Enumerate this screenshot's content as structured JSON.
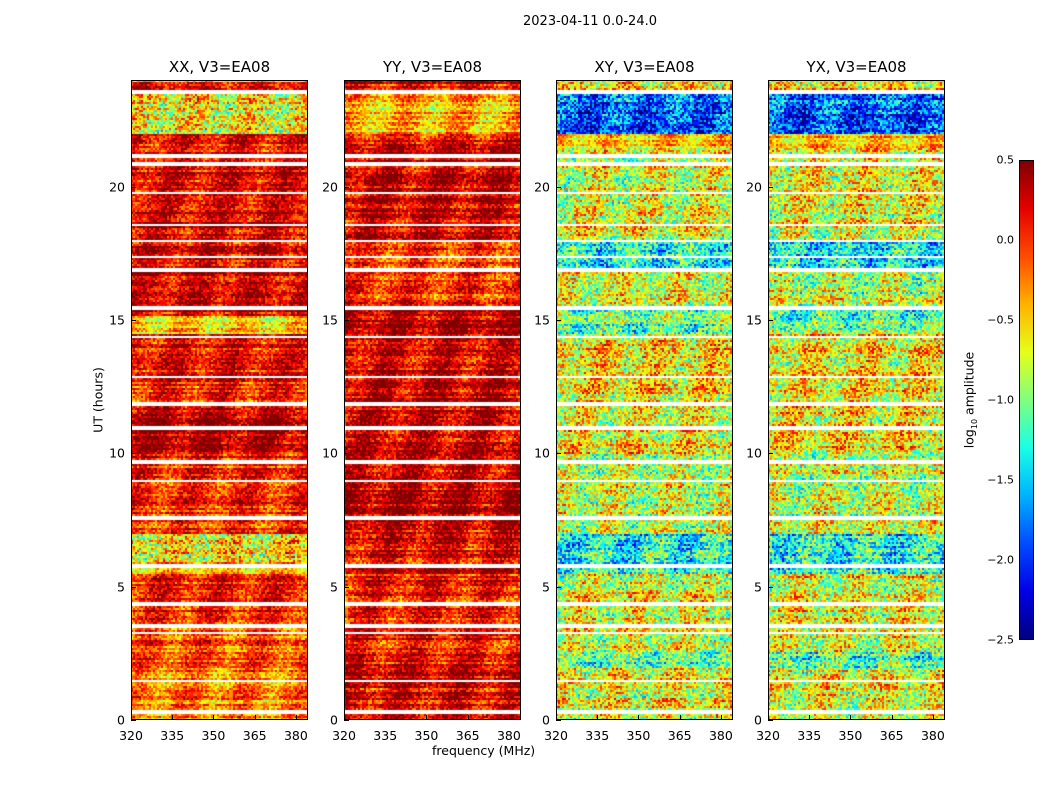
{
  "chart_data": {
    "type": "heatmap",
    "title": "2023-04-11 0.0-24.0",
    "xlabel": "frequency (MHz)",
    "ylabel": "UT (hours)",
    "xlim": [
      320,
      384.4
    ],
    "ylim": [
      0,
      24
    ],
    "xticks": [
      "320",
      "335",
      "350",
      "365",
      "380"
    ],
    "xtick_values": [
      320,
      335,
      350,
      365,
      380
    ],
    "yticks": [
      "0",
      "5",
      "10",
      "15",
      "20"
    ],
    "ytick_values": [
      0,
      5,
      10,
      15,
      20
    ],
    "colorbar": {
      "label": "log10 amplitude",
      "label_main": "log",
      "label_sub": "10",
      "label_rest": " amplitude",
      "colormap": "jet",
      "range": [
        -2.5,
        0.5
      ],
      "ticks": [
        "0.5",
        "0.0",
        "−0.5",
        "−1.0",
        "−1.5",
        "−2.0",
        "−2.5"
      ],
      "tick_values": [
        0.5,
        0.0,
        -0.5,
        -1.0,
        -1.5,
        -2.0,
        -2.5
      ]
    },
    "flagged_times_hours": [
      0.35,
      1.5,
      3.3,
      3.55,
      4.4,
      5.8,
      7.6,
      9.0,
      9.7,
      11.0,
      11.9,
      12.9,
      14.4,
      15.5,
      16.9,
      17.4,
      18.0,
      18.6,
      19.8,
      20.9,
      21.2,
      23.6
    ],
    "panels": [
      {
        "title": "XX, V3=EA08",
        "bands": [
          [
            0,
            0.5,
            -0.3
          ],
          [
            0.5,
            2,
            -0.25
          ],
          [
            2,
            3.5,
            -0.1
          ],
          [
            3.5,
            5.5,
            0.1
          ],
          [
            5.5,
            6,
            -0.4
          ],
          [
            6,
            7,
            -0.6
          ],
          [
            7,
            10,
            0.05
          ],
          [
            10,
            12,
            0.3
          ],
          [
            12,
            14.5,
            0.1
          ],
          [
            14.5,
            15.2,
            -0.5
          ],
          [
            15.2,
            21,
            0.25
          ],
          [
            21,
            22,
            0.2
          ],
          [
            22,
            23.5,
            -0.65
          ],
          [
            23.5,
            24,
            0.1
          ]
        ]
      },
      {
        "title": "YY, V3=EA08",
        "bands": [
          [
            0,
            2.6,
            0.2
          ],
          [
            2.6,
            5.5,
            0.1
          ],
          [
            5.5,
            7,
            0.2
          ],
          [
            7,
            10,
            0.3
          ],
          [
            10,
            14.5,
            0.25
          ],
          [
            14.5,
            15.5,
            0.35
          ],
          [
            15.5,
            18,
            0.0
          ],
          [
            18,
            22,
            0.25
          ],
          [
            22,
            23.5,
            -0.4
          ],
          [
            23.5,
            24,
            0.2
          ]
        ]
      },
      {
        "title": "XY, V3=EA08",
        "bands": [
          [
            0,
            2,
            -0.7
          ],
          [
            2,
            2.6,
            -1.2
          ],
          [
            2.6,
            5.5,
            -0.7
          ],
          [
            5.5,
            7,
            -1.3
          ],
          [
            7,
            10,
            -0.8
          ],
          [
            10,
            14.5,
            -0.6
          ],
          [
            14.5,
            15.5,
            -1.1
          ],
          [
            15.5,
            17,
            -0.8
          ],
          [
            17,
            18,
            -1.4
          ],
          [
            18,
            21.5,
            -0.7
          ],
          [
            21.5,
            22,
            -0.5
          ],
          [
            22,
            23.5,
            -1.9
          ],
          [
            23.5,
            24,
            -0.6
          ]
        ]
      },
      {
        "title": "YX, V3=EA08",
        "bands": [
          [
            0,
            2,
            -0.7
          ],
          [
            2,
            2.6,
            -1.2
          ],
          [
            2.6,
            5.5,
            -0.7
          ],
          [
            5.5,
            7,
            -1.3
          ],
          [
            7,
            10,
            -0.8
          ],
          [
            10,
            14.5,
            -0.6
          ],
          [
            14.5,
            15.5,
            -1.1
          ],
          [
            15.5,
            17,
            -0.8
          ],
          [
            17,
            18,
            -1.4
          ],
          [
            18,
            21.5,
            -0.7
          ],
          [
            21.5,
            22,
            -0.5
          ],
          [
            22,
            23.5,
            -1.9
          ],
          [
            23.5,
            24,
            -0.6
          ]
        ]
      }
    ]
  }
}
